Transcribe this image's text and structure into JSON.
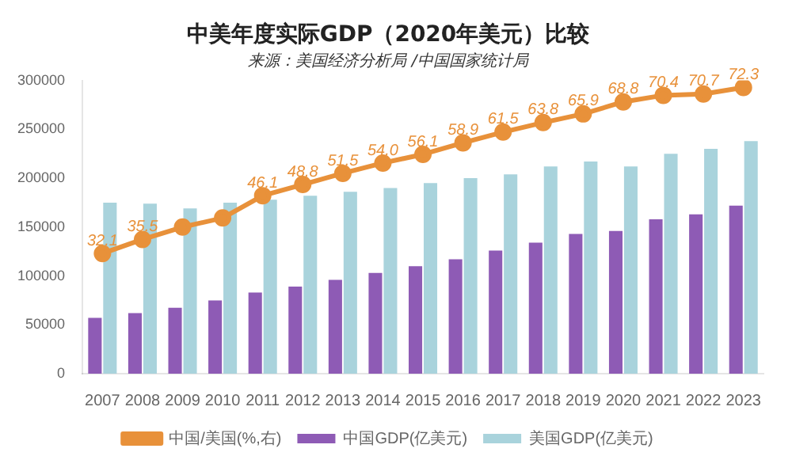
{
  "chart_data": {
    "type": "bar",
    "title": "中美年度实际GDP（2020年美元）比较",
    "subtitle": "来源：美国经济分析局 /中国国家统计局",
    "categories": [
      "2007",
      "2008",
      "2009",
      "2010",
      "2011",
      "2012",
      "2013",
      "2014",
      "2015",
      "2016",
      "2017",
      "2018",
      "2019",
      "2020",
      "2021",
      "2022",
      "2023"
    ],
    "series": [
      {
        "name": "中国GDP(亿美元)",
        "color": "#8e5bb5",
        "values": [
          57000,
          62000,
          67500,
          75000,
          83000,
          89000,
          96000,
          103000,
          110000,
          117000,
          126000,
          134000,
          143000,
          146000,
          158000,
          163000,
          172000
        ]
      },
      {
        "name": "美国GDP(亿美元)",
        "color": "#a9d3dc",
        "values": [
          175000,
          174000,
          169000,
          175000,
          178000,
          182000,
          186000,
          190000,
          195000,
          200000,
          204000,
          212000,
          217000,
          212000,
          225000,
          230000,
          238000
        ]
      },
      {
        "name": "中国/美国(%,右)",
        "type": "line",
        "axis": "y2",
        "color": "#e8913a",
        "marker": "circle",
        "values": [
          32.1,
          35.5,
          38.5,
          40.7,
          46.1,
          48.8,
          51.5,
          54.0,
          56.1,
          58.9,
          61.5,
          63.8,
          65.9,
          68.8,
          70.4,
          70.7,
          72.3
        ],
        "value_labels": [
          "32.1",
          "35.5",
          null,
          null,
          "46.1",
          "48.8",
          "51.5",
          "54.0",
          "56.1",
          "58.9",
          "61.5",
          "63.8",
          "65.9",
          "68.8",
          "70.4",
          "70.7",
          "72.3"
        ]
      }
    ],
    "ylim": [
      0,
      300000
    ],
    "yticks": [
      0,
      50000,
      100000,
      150000,
      200000,
      250000,
      300000
    ],
    "y2lim": [
      3,
      74
    ],
    "grid": false,
    "legend": "bottom"
  }
}
